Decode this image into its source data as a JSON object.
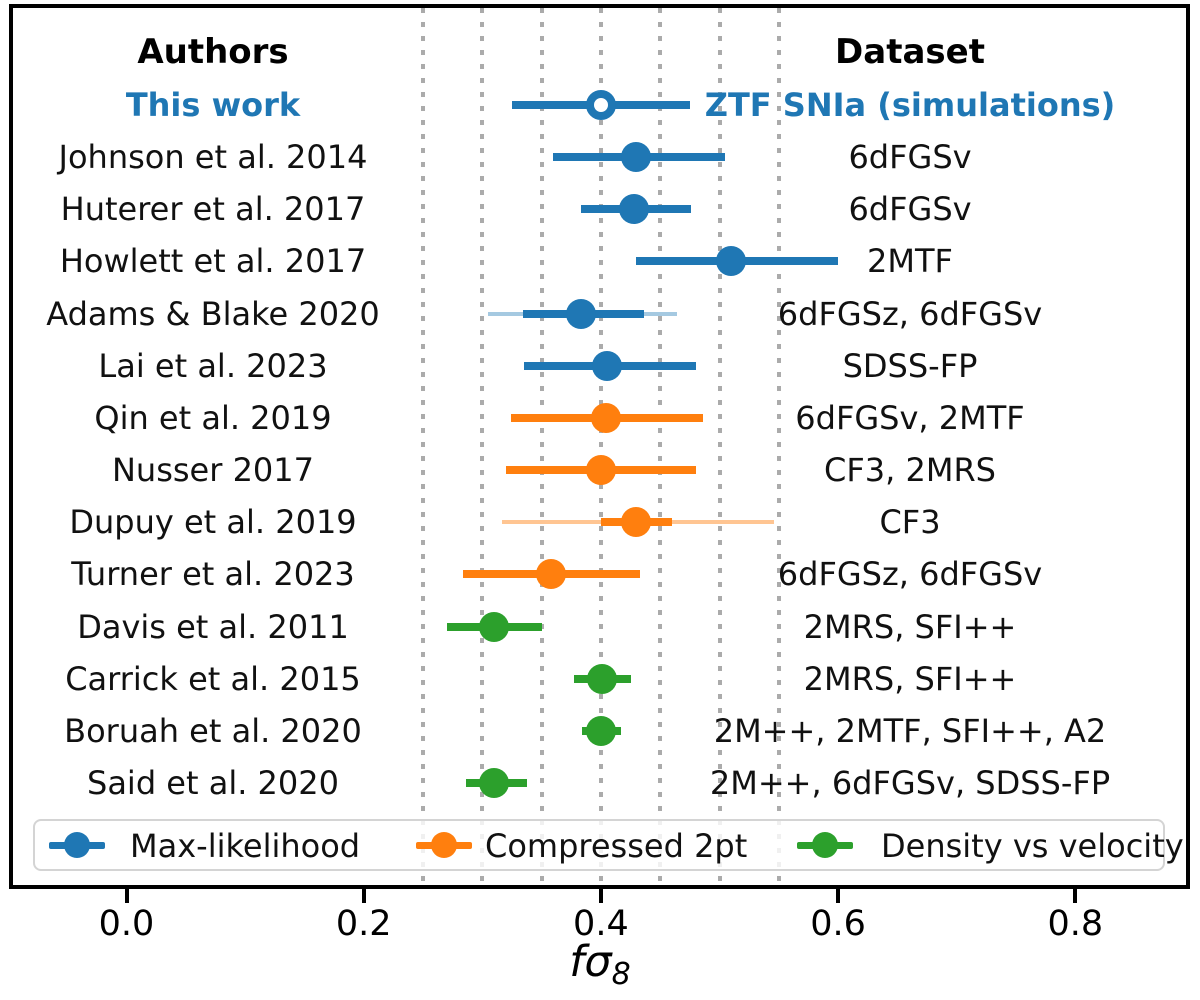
{
  "colors": {
    "blue": "#1f77b4",
    "blue_light": "rgba(31,119,180,0.4)",
    "orange": "#ff7f0e",
    "orange_light": "rgba(255,127,14,0.45)",
    "green": "#2ca02c",
    "grid": "#ababab",
    "frame": "#000000",
    "highlight_text": "#1f77b4"
  },
  "chart_data": {
    "type": "scatter",
    "subtype": "forest-plot-errorbar",
    "authors_header": "Authors",
    "dataset_header": "Dataset",
    "xlabel": {
      "prefix": "fσ",
      "subscript": "8"
    },
    "xlim": [
      -0.1,
      0.9
    ],
    "x_ticks": [
      "0.0",
      "0.2",
      "0.4",
      "0.6",
      "0.8"
    ],
    "x_tick_values": [
      0.0,
      0.2,
      0.4,
      0.6,
      0.8
    ],
    "gridlines_x": [
      0.25,
      0.3,
      0.35,
      0.4,
      0.45,
      0.5,
      0.55
    ],
    "grid_style": "dotted",
    "legend": [
      {
        "label": "Max-likelihood",
        "group": "max_likelihood",
        "color": "#1f77b4"
      },
      {
        "label": "Compressed 2pt",
        "group": "compressed_2pt",
        "color": "#ff7f0e"
      },
      {
        "label": "Density vs velocity",
        "group": "density_velocity",
        "color": "#2ca02c"
      }
    ],
    "rows": [
      {
        "author": "This work",
        "dataset": "ZTF SNIa (simulations)",
        "value": 0.4,
        "err_lo": 0.325,
        "err_hi": 0.475,
        "group": "max_likelihood",
        "marker": "open",
        "highlight": true
      },
      {
        "author": "Johnson et al. 2014",
        "dataset": "6dFGSv",
        "value": 0.43,
        "err_lo": 0.36,
        "err_hi": 0.505,
        "group": "max_likelihood",
        "marker": "filled",
        "highlight": false
      },
      {
        "author": "Huterer et al. 2017",
        "dataset": "6dFGSv",
        "value": 0.428,
        "err_lo": 0.383,
        "err_hi": 0.476,
        "group": "max_likelihood",
        "marker": "filled",
        "highlight": false
      },
      {
        "author": "Howlett et al. 2017",
        "dataset": "2MTF",
        "value": 0.51,
        "err_lo": 0.43,
        "err_hi": 0.6,
        "group": "max_likelihood",
        "marker": "filled",
        "highlight": false
      },
      {
        "author": "Adams & Blake 2020",
        "dataset": "6dFGSz, 6dFGSv",
        "value": 0.383,
        "err_lo": 0.334,
        "err_hi": 0.436,
        "thin_lo": 0.305,
        "thin_hi": 0.464,
        "group": "max_likelihood",
        "marker": "filled",
        "highlight": false
      },
      {
        "author": "Lai et al. 2023",
        "dataset": "SDSS-FP",
        "value": 0.405,
        "err_lo": 0.335,
        "err_hi": 0.48,
        "group": "max_likelihood",
        "marker": "filled",
        "highlight": false
      },
      {
        "author": "Qin et al. 2019",
        "dataset": "6dFGSv, 2MTF",
        "value": 0.404,
        "err_lo": 0.324,
        "err_hi": 0.486,
        "group": "compressed_2pt",
        "marker": "filled",
        "highlight": false
      },
      {
        "author": "Nusser 2017",
        "dataset": "CF3, 2MRS",
        "value": 0.4,
        "err_lo": 0.32,
        "err_hi": 0.48,
        "group": "compressed_2pt",
        "marker": "filled",
        "highlight": false
      },
      {
        "author": "Dupuy et al. 2019",
        "dataset": "CF3",
        "value": 0.43,
        "err_lo": 0.4,
        "err_hi": 0.46,
        "thin_lo": 0.317,
        "thin_hi": 0.546,
        "group": "compressed_2pt",
        "marker": "filled",
        "highlight": false
      },
      {
        "author": "Turner et al. 2023",
        "dataset": "6dFGSz, 6dFGSv",
        "value": 0.358,
        "err_lo": 0.284,
        "err_hi": 0.433,
        "group": "compressed_2pt",
        "marker": "filled",
        "highlight": false
      },
      {
        "author": "Davis et al. 2011",
        "dataset": "2MRS, SFI++",
        "value": 0.31,
        "err_lo": 0.27,
        "err_hi": 0.35,
        "group": "density_velocity",
        "marker": "filled",
        "highlight": false
      },
      {
        "author": "Carrick et al. 2015",
        "dataset": "2MRS, SFI++",
        "value": 0.401,
        "err_lo": 0.377,
        "err_hi": 0.425,
        "group": "density_velocity",
        "marker": "filled",
        "highlight": false
      },
      {
        "author": "Boruah et al. 2020",
        "dataset": "2M++, 2MTF, SFI++, A2",
        "value": 0.4,
        "err_lo": 0.384,
        "err_hi": 0.417,
        "group": "density_velocity",
        "marker": "filled",
        "highlight": false
      },
      {
        "author": "Said et al. 2020",
        "dataset": "2M++, 6dFGSv, SDSS-FP",
        "value": 0.31,
        "err_lo": 0.286,
        "err_hi": 0.338,
        "group": "density_velocity",
        "marker": "filled",
        "highlight": false
      }
    ]
  }
}
